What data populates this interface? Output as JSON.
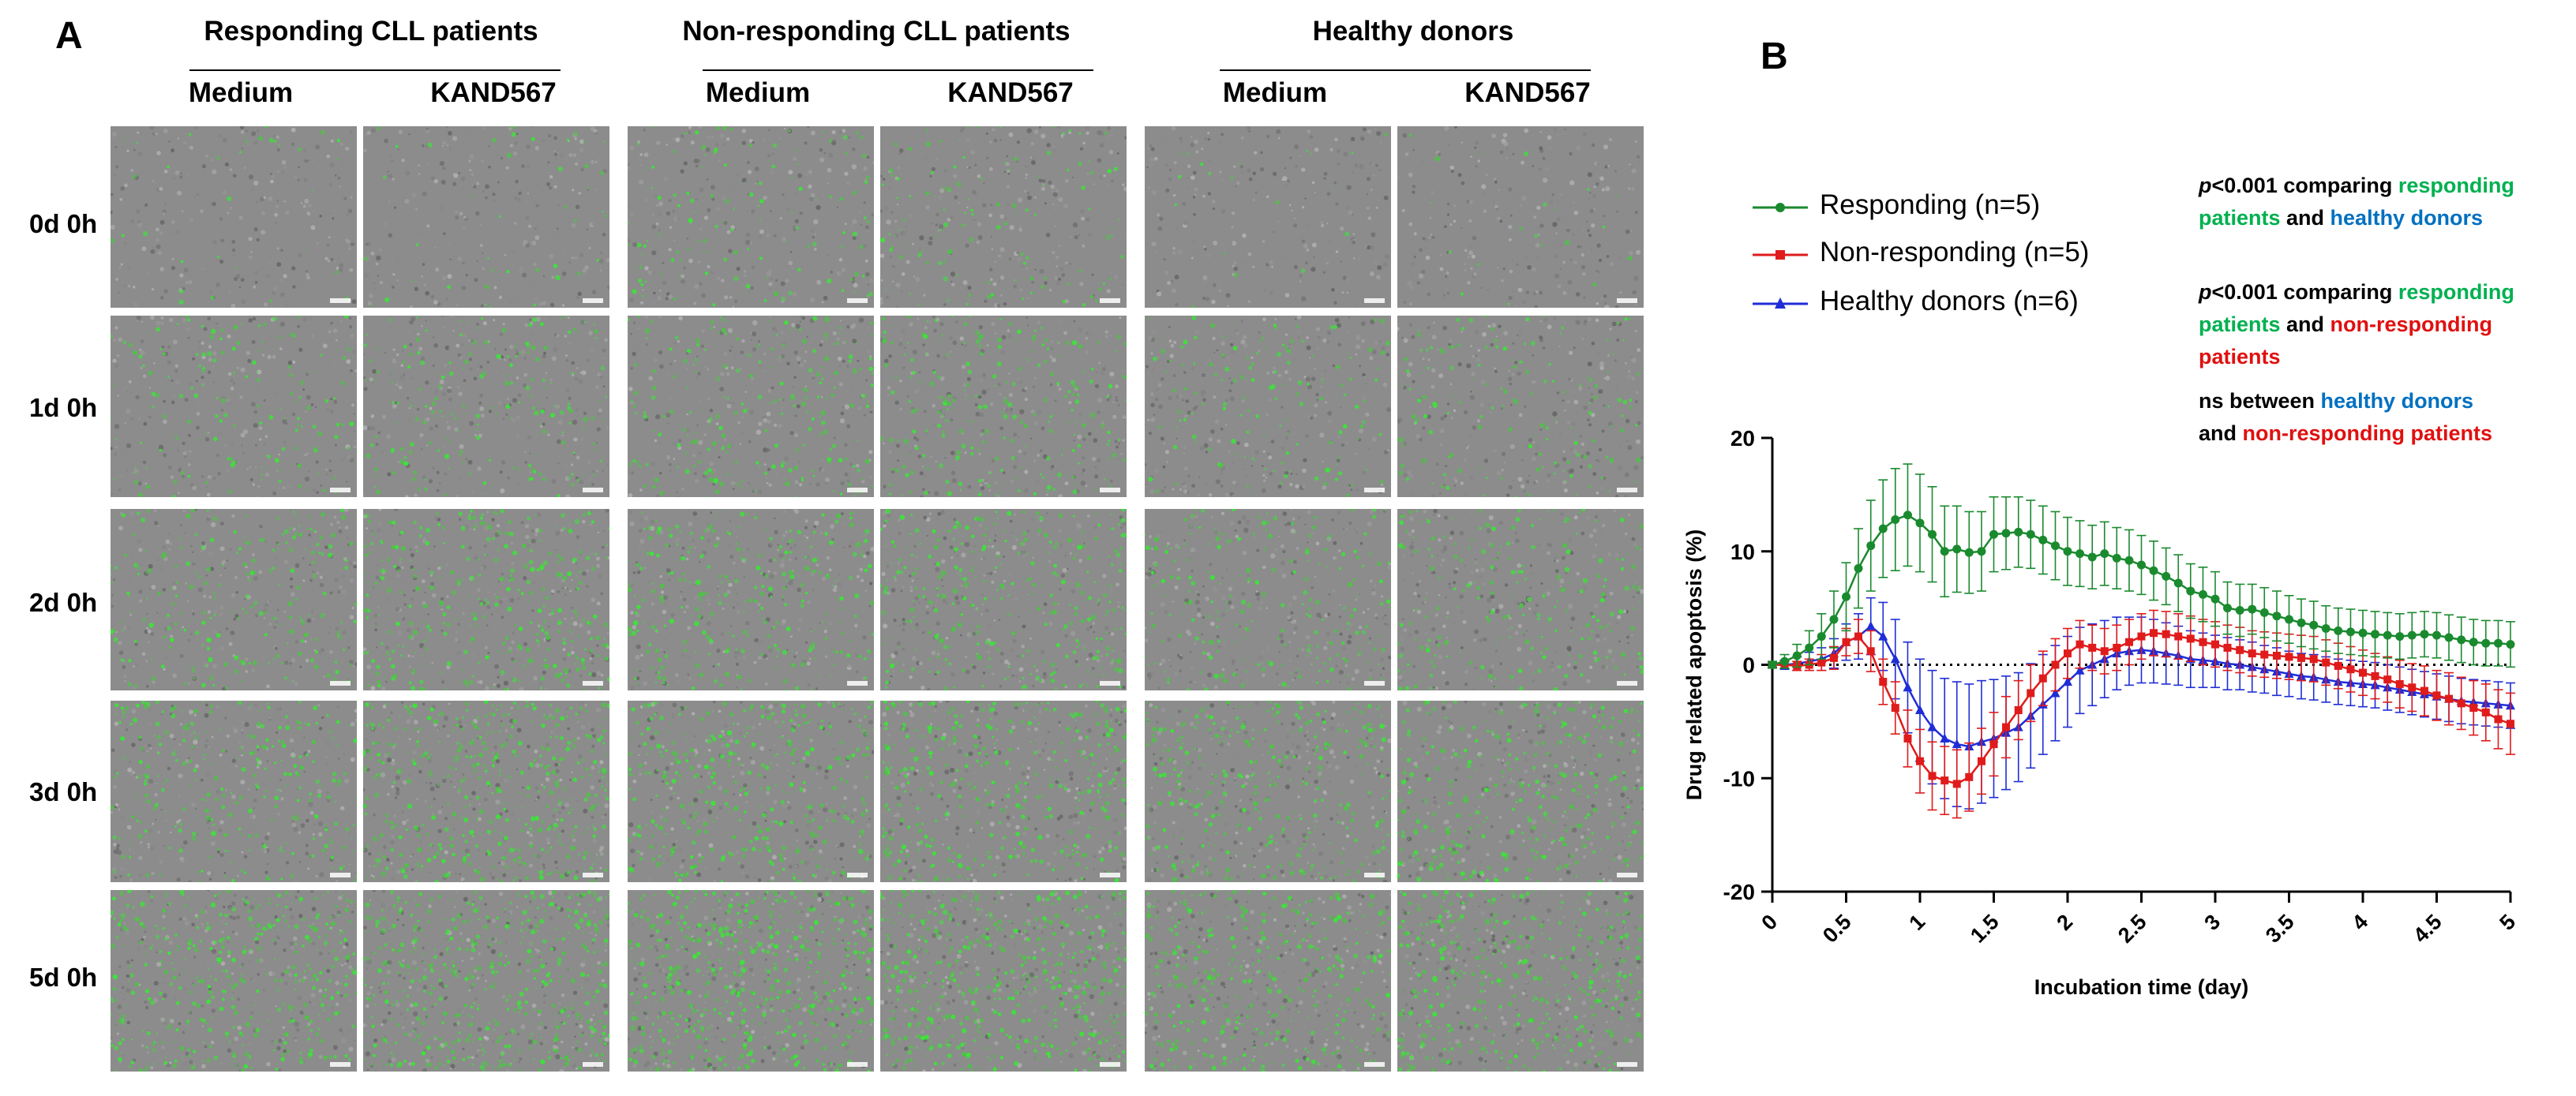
{
  "panel_a": {
    "label": "A",
    "groups": [
      {
        "title": "Responding  CLL patients",
        "columns": [
          "Medium",
          "KAND567"
        ]
      },
      {
        "title": "Non-responding  CLL patients",
        "columns": [
          "Medium",
          "KAND567"
        ]
      },
      {
        "title": "Healthy donors",
        "columns": [
          "Medium",
          "KAND567"
        ]
      }
    ],
    "row_labels": [
      "0d 0h",
      "1d 0h",
      "2d 0h",
      "3d 0h",
      "5d 0h"
    ]
  },
  "panel_b": {
    "label": "B",
    "legend": [
      {
        "text": "Responding (n=5)",
        "color": "#1a8a2e",
        "marker": "circle"
      },
      {
        "text": "Non-responding (n=5)",
        "color": "#e01b1b",
        "marker": "square"
      },
      {
        "text": "Healthy donors (n=6)",
        "color": "#1f2dd6",
        "marker": "triangle"
      }
    ],
    "stats": [
      {
        "p": "p",
        "lines": [
          [
            {
              "t": "<0.001 comparing ",
              "c": ""
            },
            {
              "t": "responding",
              "c": "g"
            }
          ],
          [
            {
              "t": "patients",
              "c": "g"
            },
            {
              "t": " and ",
              "c": ""
            },
            {
              "t": "healthy donors",
              "c": "b"
            }
          ]
        ]
      },
      {
        "p": "p",
        "lines": [
          [
            {
              "t": "<0.001 comparing ",
              "c": ""
            },
            {
              "t": "responding",
              "c": "g"
            }
          ],
          [
            {
              "t": "patients",
              "c": "g"
            },
            {
              "t": " and ",
              "c": ""
            },
            {
              "t": "non-responding",
              "c": "r"
            }
          ],
          [
            {
              "t": "patients",
              "c": "r"
            }
          ]
        ]
      },
      {
        "p": "",
        "lines": [
          [
            {
              "t": "ns between ",
              "c": ""
            },
            {
              "t": "healthy donors",
              "c": "b"
            }
          ],
          [
            {
              "t": "and ",
              "c": ""
            },
            {
              "t": "non-responding patients",
              "c": "r"
            }
          ]
        ]
      }
    ]
  },
  "chart_data": {
    "type": "line",
    "title": "",
    "xlabel": "Incubation time (day)",
    "ylabel": "Drug related apoptosis (%)",
    "xlim": [
      0,
      5
    ],
    "ylim": [
      -20,
      20
    ],
    "x_ticks": [
      "0",
      "0.5",
      "1",
      "1.5",
      "2",
      "2.5",
      "3",
      "3.5",
      "4",
      "4.5",
      "5"
    ],
    "y_ticks": [
      "20",
      "10",
      "0",
      "-10",
      "-20"
    ],
    "reference_line": 0,
    "x": [
      0,
      0.083,
      0.167,
      0.25,
      0.333,
      0.417,
      0.5,
      0.583,
      0.667,
      0.75,
      0.833,
      0.917,
      1,
      1.083,
      1.167,
      1.25,
      1.333,
      1.417,
      1.5,
      1.583,
      1.667,
      1.75,
      1.833,
      1.917,
      2,
      2.083,
      2.167,
      2.25,
      2.333,
      2.417,
      2.5,
      2.583,
      2.667,
      2.75,
      2.833,
      2.917,
      3,
      3.083,
      3.167,
      3.25,
      3.333,
      3.417,
      3.5,
      3.583,
      3.667,
      3.75,
      3.833,
      3.917,
      4,
      4.083,
      4.167,
      4.25,
      4.333,
      4.417,
      4.5,
      4.583,
      4.667,
      4.75,
      4.833,
      4.917,
      5
    ],
    "series": [
      {
        "name": "Responding (n=5)",
        "color": "#1a8a2e",
        "marker": "circle",
        "values": [
          0,
          0.3,
          0.8,
          1.5,
          2.5,
          4,
          6,
          8.5,
          10.5,
          12,
          12.8,
          13.2,
          12.5,
          11.5,
          10,
          10.2,
          9.9,
          10,
          11.5,
          11.6,
          11.7,
          11.5,
          11,
          10.5,
          10,
          9.8,
          9.5,
          9.8,
          9.4,
          9.2,
          8.8,
          8.3,
          7.8,
          7.2,
          6.5,
          6.2,
          5.8,
          5,
          4.8,
          4.9,
          4.6,
          4.3,
          4,
          3.7,
          3.5,
          3.2,
          3,
          2.9,
          2.8,
          2.7,
          2.6,
          2.5,
          2.6,
          2.7,
          2.6,
          2.4,
          2.2,
          2,
          1.9,
          1.9,
          1.8
        ],
        "errors": [
          0.3,
          0.6,
          1,
          1.5,
          2,
          2.5,
          3,
          3.5,
          4,
          4.3,
          4.5,
          4.5,
          4.3,
          4.2,
          4,
          3.8,
          3.6,
          3.5,
          3.3,
          3.2,
          3.1,
          3,
          3,
          3,
          3,
          2.9,
          2.8,
          2.8,
          2.7,
          2.7,
          2.6,
          2.6,
          2.5,
          2.5,
          2.4,
          2.4,
          2.4,
          2.3,
          2.3,
          2.2,
          2.2,
          2.2,
          2.1,
          2.1,
          2.1,
          2,
          2,
          2,
          2,
          2,
          2,
          2,
          2,
          2,
          2,
          2,
          2,
          2,
          2,
          2,
          2
        ]
      },
      {
        "name": "Non-responding (n=5)",
        "color": "#e01b1b",
        "marker": "square",
        "values": [
          0,
          0,
          -0.1,
          0,
          0.2,
          0.6,
          2,
          2.5,
          1.2,
          -1.5,
          -3.8,
          -6.5,
          -8.5,
          -9.8,
          -10.2,
          -10.5,
          -9.9,
          -8.5,
          -7,
          -5.5,
          -4,
          -2.5,
          -1.2,
          0,
          1,
          1.8,
          1.5,
          1.2,
          1.5,
          2,
          2.5,
          2.8,
          2.7,
          2.5,
          2.3,
          2,
          1.8,
          1.5,
          1.3,
          1,
          0.9,
          0.8,
          0.7,
          0.6,
          0.5,
          0.2,
          -0.1,
          -0.4,
          -0.7,
          -1,
          -1.3,
          -1.7,
          -2,
          -2.3,
          -2.7,
          -3,
          -3.4,
          -3.8,
          -4.2,
          -4.8,
          -5.2
        ],
        "errors": [
          0.2,
          0.3,
          0.4,
          0.5,
          0.7,
          1,
          1.2,
          1.5,
          1.8,
          2,
          2.3,
          2.5,
          2.8,
          3,
          3,
          3,
          3,
          2.9,
          2.8,
          2.7,
          2.6,
          2.5,
          2.4,
          2.3,
          2.2,
          2.1,
          2,
          2,
          2,
          2,
          2,
          2,
          2,
          2,
          2,
          2,
          2,
          2,
          2,
          2,
          2,
          2,
          2,
          2,
          2,
          2,
          2,
          2,
          2,
          2,
          2,
          2.1,
          2.1,
          2.2,
          2.2,
          2.3,
          2.3,
          2.4,
          2.5,
          2.6,
          2.7
        ]
      },
      {
        "name": "Healthy donors (n=6)",
        "color": "#1f2dd6",
        "marker": "triangle",
        "values": [
          0,
          0,
          0.1,
          0.3,
          0.5,
          1,
          2,
          2.5,
          3.4,
          2.5,
          0.5,
          -2,
          -4,
          -5.5,
          -6.5,
          -7,
          -7.2,
          -6.8,
          -6.5,
          -6,
          -5.5,
          -4.5,
          -3.5,
          -2.5,
          -1.5,
          -0.5,
          0,
          0.5,
          1,
          1.2,
          1.3,
          1.2,
          1,
          0.8,
          0.5,
          0.4,
          0.3,
          0.1,
          0,
          -0.2,
          -0.4,
          -0.6,
          -0.8,
          -1,
          -1.1,
          -1.3,
          -1.5,
          -1.6,
          -1.7,
          -1.8,
          -2,
          -2.2,
          -2.4,
          -2.6,
          -2.8,
          -3,
          -3.2,
          -3.3,
          -3.4,
          -3.5,
          -3.6
        ],
        "errors": [
          0.2,
          0.4,
          0.6,
          0.8,
          1,
          1.3,
          1.6,
          2,
          2.5,
          3,
          3.5,
          4,
          4.5,
          5,
          5.3,
          5.5,
          5.5,
          5.4,
          5.2,
          5,
          4.8,
          4.6,
          4.4,
          4.2,
          4,
          3.8,
          3.6,
          3.4,
          3.2,
          3,
          2.9,
          2.8,
          2.7,
          2.6,
          2.5,
          2.4,
          2.3,
          2.3,
          2.2,
          2.2,
          2.1,
          2.1,
          2,
          2,
          2,
          2,
          2,
          2,
          2,
          2,
          2,
          2,
          2,
          2,
          2,
          2,
          2,
          2,
          2,
          2,
          2
        ]
      }
    ]
  },
  "colors": {
    "tile_gray": "#8c8c8c",
    "cell_green": "#3ee23a"
  }
}
